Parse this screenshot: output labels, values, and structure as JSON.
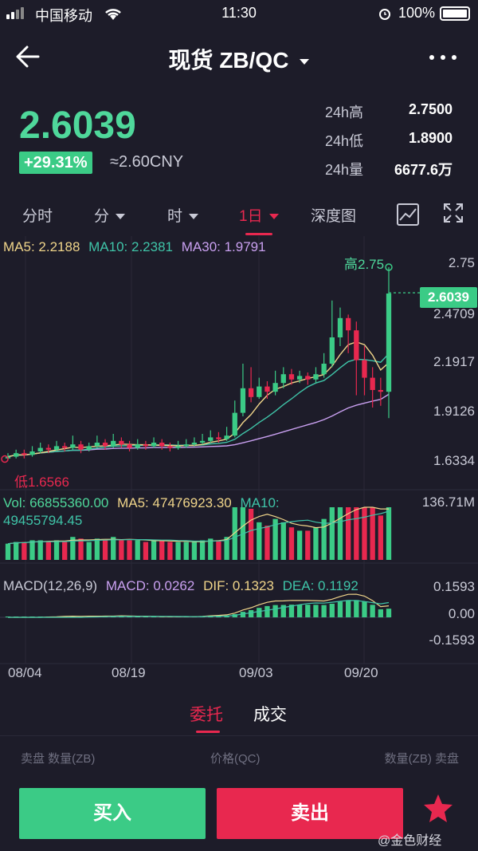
{
  "status_bar": {
    "carrier": "中国移动",
    "time": "11:30",
    "battery": "100%"
  },
  "nav": {
    "title": "现货 ZB/QC"
  },
  "ticker": {
    "price": "2.6039",
    "change": "+29.31%",
    "cny": "≈2.60CNY",
    "stats": [
      {
        "label": "24h高",
        "value": "2.7500"
      },
      {
        "label": "24h低",
        "value": "1.8900"
      },
      {
        "label": "24h量",
        "value": "6677.6万"
      }
    ]
  },
  "tabs": [
    {
      "label": "分时",
      "dropdown": false,
      "active": false
    },
    {
      "label": "分",
      "dropdown": true,
      "active": false
    },
    {
      "label": "时",
      "dropdown": true,
      "active": false
    },
    {
      "label": "1日",
      "dropdown": true,
      "active": true
    },
    {
      "label": "深度图",
      "dropdown": false,
      "active": false
    }
  ],
  "ma_legend": {
    "ma5": "MA5: 2.2188",
    "ma10": "MA10: 2.2381",
    "ma30": "MA30: 1.9791"
  },
  "price_axis": [
    "2.75",
    "2.4709",
    "2.1917",
    "1.9126",
    "1.6334"
  ],
  "high_label": "高2.75",
  "low_label": "低1.6566",
  "last_price_tag": "2.6039",
  "volume_legend": {
    "vol": "Vol: 66855360.00",
    "ma5": "MA5: 47476923.30",
    "ma10": "MA10:",
    "ma10_value": "49455794.45",
    "max": "136.71M"
  },
  "macd_legend": {
    "name": "MACD(12,26,9)",
    "macd": "MACD: 0.0262",
    "dif": "DIF: 0.1323",
    "dea": "DEA: 0.1192"
  },
  "macd_axis": [
    "0.1593",
    "0.00",
    "-0.1593"
  ],
  "dates": [
    "08/04",
    "08/19",
    "09/03",
    "09/20"
  ],
  "orders": {
    "tabs": [
      "委托",
      "成交"
    ],
    "head_left": "卖盘 数量(ZB)",
    "head_mid": "价格(QC)",
    "head_right": "数量(ZB) 卖盘"
  },
  "actions": {
    "buy": "买入",
    "sell": "卖出"
  },
  "watermark": "@金色财经",
  "colors": {
    "up": "#3bcb86",
    "down": "#e8284f",
    "bg": "#1d1c29"
  },
  "chart_data": {
    "type": "candlestick",
    "dates": [
      "08/04",
      "08/19",
      "09/03",
      "09/20"
    ],
    "ylim": [
      1.6334,
      2.75
    ],
    "candles": [
      [
        1.66,
        1.67,
        1.69,
        1.65
      ],
      [
        1.67,
        1.69,
        1.71,
        1.66
      ],
      [
        1.69,
        1.68,
        1.71,
        1.66
      ],
      [
        1.68,
        1.7,
        1.73,
        1.67
      ],
      [
        1.7,
        1.72,
        1.75,
        1.69
      ],
      [
        1.72,
        1.71,
        1.74,
        1.69
      ],
      [
        1.71,
        1.73,
        1.76,
        1.7
      ],
      [
        1.73,
        1.72,
        1.75,
        1.7
      ],
      [
        1.72,
        1.74,
        1.79,
        1.71
      ],
      [
        1.74,
        1.71,
        1.76,
        1.69
      ],
      [
        1.71,
        1.73,
        1.75,
        1.7
      ],
      [
        1.73,
        1.75,
        1.79,
        1.72
      ],
      [
        1.75,
        1.73,
        1.77,
        1.71
      ],
      [
        1.73,
        1.76,
        1.8,
        1.72
      ],
      [
        1.76,
        1.74,
        1.78,
        1.72
      ],
      [
        1.74,
        1.72,
        1.76,
        1.7
      ],
      [
        1.72,
        1.74,
        1.77,
        1.71
      ],
      [
        1.74,
        1.73,
        1.76,
        1.71
      ],
      [
        1.73,
        1.75,
        1.78,
        1.72
      ],
      [
        1.75,
        1.73,
        1.77,
        1.71
      ],
      [
        1.73,
        1.72,
        1.75,
        1.7
      ],
      [
        1.72,
        1.73,
        1.76,
        1.71
      ],
      [
        1.73,
        1.74,
        1.77,
        1.72
      ],
      [
        1.74,
        1.75,
        1.78,
        1.73
      ],
      [
        1.75,
        1.76,
        1.8,
        1.74
      ],
      [
        1.76,
        1.78,
        1.82,
        1.75
      ],
      [
        1.78,
        1.77,
        1.81,
        1.75
      ],
      [
        1.77,
        1.79,
        1.84,
        1.76
      ],
      [
        1.79,
        1.92,
        1.99,
        1.78
      ],
      [
        1.92,
        2.06,
        2.2,
        1.9
      ],
      [
        2.06,
        2.01,
        2.18,
        1.98
      ],
      [
        2.01,
        2.07,
        2.12,
        2.0
      ],
      [
        2.07,
        2.04,
        2.1,
        2.0
      ],
      [
        2.04,
        2.09,
        2.16,
        2.02
      ],
      [
        2.09,
        2.14,
        2.18,
        2.06
      ],
      [
        2.14,
        2.11,
        2.17,
        2.08
      ],
      [
        2.11,
        2.13,
        2.16,
        2.09
      ],
      [
        2.13,
        2.11,
        2.15,
        2.08
      ],
      [
        2.11,
        2.14,
        2.18,
        2.09
      ],
      [
        2.14,
        2.2,
        2.26,
        2.12
      ],
      [
        2.2,
        2.35,
        2.56,
        2.18
      ],
      [
        2.35,
        2.46,
        2.52,
        2.3
      ],
      [
        2.46,
        2.39,
        2.48,
        2.26
      ],
      [
        2.39,
        2.22,
        2.44,
        2.02
      ],
      [
        2.22,
        2.12,
        2.3,
        2.02
      ],
      [
        2.12,
        2.05,
        2.18,
        1.95
      ],
      [
        2.05,
        2.04,
        2.12,
        1.96
      ],
      [
        2.04,
        2.6,
        2.75,
        1.89
      ]
    ],
    "volume_ylim": [
      0,
      136.71
    ]
  }
}
